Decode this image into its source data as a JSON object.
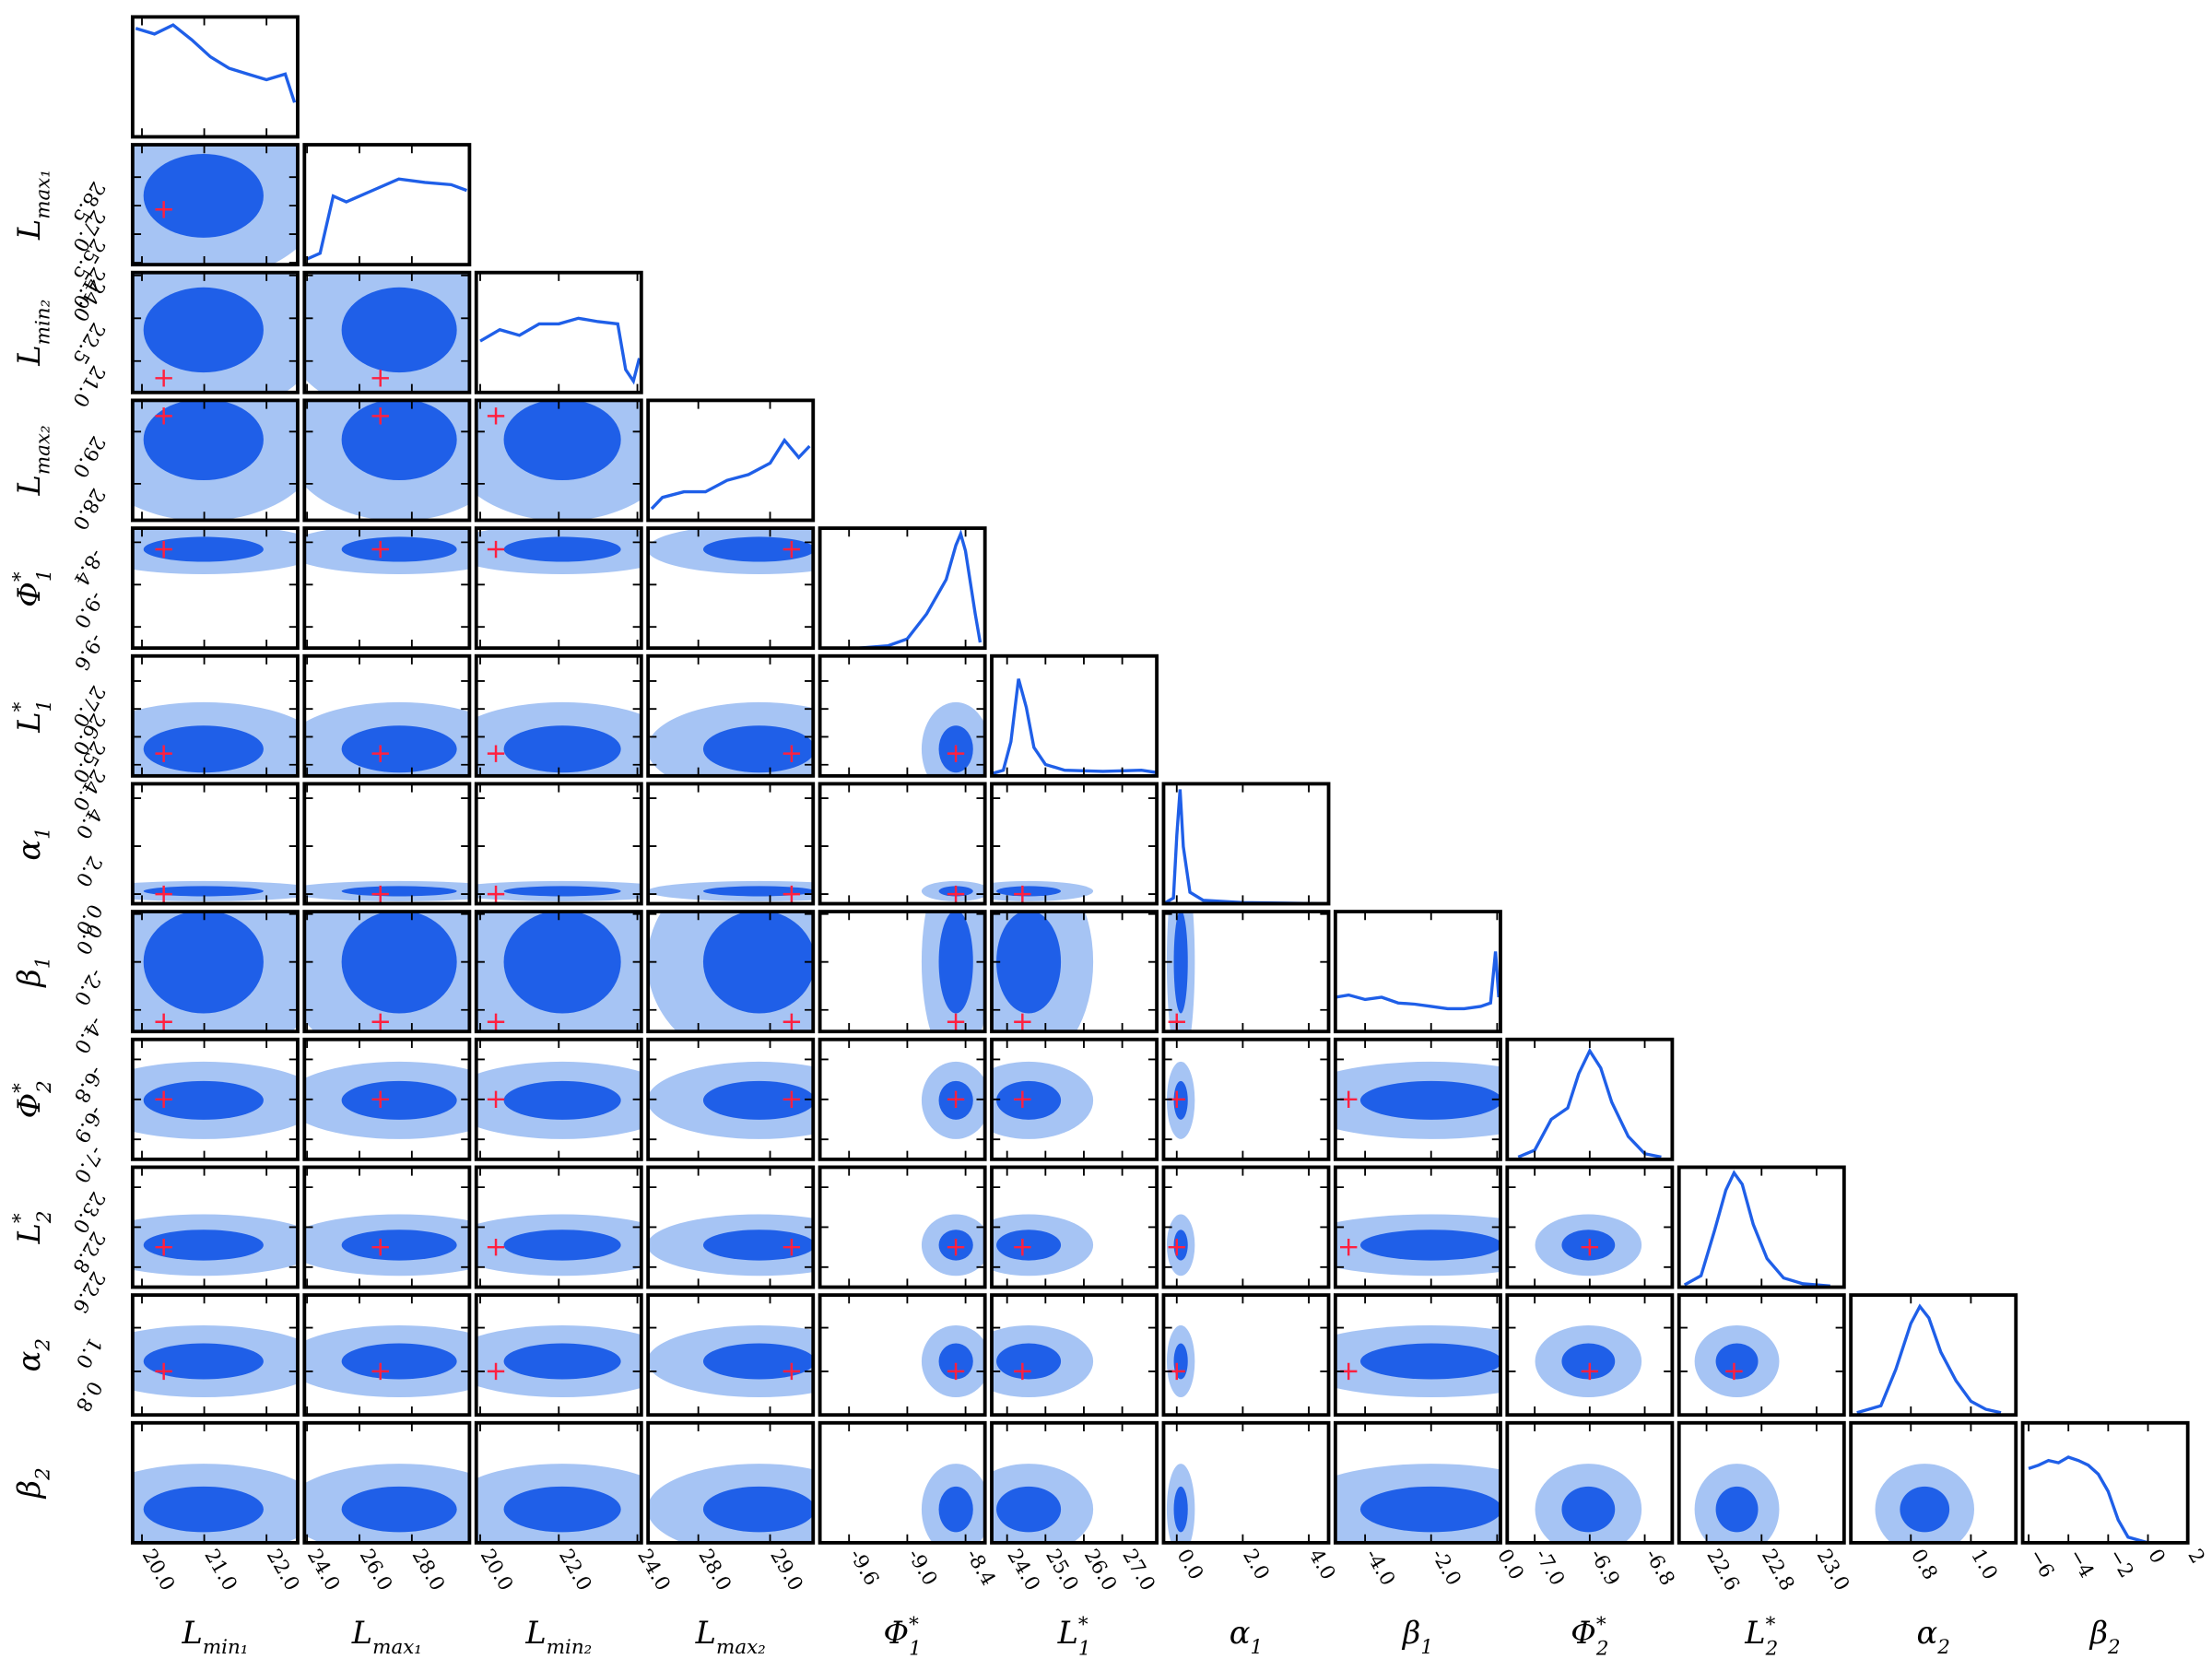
{
  "chart_data": {
    "type": "corner",
    "marginal_ylim": [
      0,
      1.05
    ],
    "colors": {
      "outer": "#a6c4f4",
      "inner": "#1f5fe8",
      "line": "#1f5fe8",
      "truth": "#ff2040"
    },
    "params": [
      {
        "label": {
          "symbol": "L",
          "sub": "min₁"
        },
        "lim": [
          19.85,
          22.5
        ],
        "xticks": [
          {
            "value": 20,
            "label": "20.0"
          },
          {
            "value": 21,
            "label": "21.0"
          },
          {
            "value": 22,
            "label": "22.0"
          }
        ],
        "yticks": [],
        "truth": 20.35,
        "marginal": {
          "x": [
            19.9,
            20.2,
            20.5,
            20.8,
            21.1,
            21.4,
            21.7,
            22.0,
            22.3,
            22.45
          ],
          "density": [
            0.95,
            0.9,
            0.98,
            0.85,
            0.7,
            0.6,
            0.55,
            0.5,
            0.55,
            0.3
          ]
        }
      },
      {
        "label": {
          "symbol": "L",
          "sub": "max₁"
        },
        "lim": [
          23.9,
          30.2
        ],
        "xticks": [
          {
            "value": 24,
            "label": "24.0"
          },
          {
            "value": 26,
            "label": "26.0"
          },
          {
            "value": 28,
            "label": "28.0"
          }
        ],
        "yticks": [
          {
            "value": 24,
            "label": "24.0"
          },
          25.5,
          {
            "value": 27,
            "label": "27.0"
          },
          28.5
        ],
        "truth": 26.8,
        "marginal": {
          "x": [
            24,
            24.5,
            25,
            25.5,
            26.5,
            27.5,
            28.5,
            29.5,
            30.1
          ],
          "density": [
            0.05,
            0.1,
            0.6,
            0.55,
            0.65,
            0.75,
            0.72,
            0.7,
            0.65
          ]
        }
      },
      {
        "label": {
          "symbol": "L",
          "sub": "min₂"
        },
        "lim": [
          19.9,
          24.1
        ],
        "xticks": [
          {
            "value": 20,
            "label": "20.0"
          },
          {
            "value": 22,
            "label": "22.0"
          },
          {
            "value": 24,
            "label": "24.0"
          }
        ],
        "yticks": [
          {
            "value": 21,
            "label": "21.0"
          },
          22.5,
          {
            "value": 24,
            "label": "24.0"
          }
        ],
        "truth": 20.4,
        "marginal": {
          "x": [
            20,
            20.5,
            21,
            21.5,
            22,
            22.5,
            23,
            23.5,
            23.7,
            23.9,
            24.05
          ],
          "density": [
            0.45,
            0.55,
            0.5,
            0.6,
            0.6,
            0.65,
            0.62,
            0.6,
            0.2,
            0.1,
            0.3
          ]
        }
      },
      {
        "label": {
          "symbol": "L",
          "sub": "max₂"
        },
        "lim": [
          27.3,
          29.6
        ],
        "xticks": [
          {
            "value": 28,
            "label": "28.0"
          },
          {
            "value": 29,
            "label": "29.0"
          }
        ],
        "yticks": [
          {
            "value": 28,
            "label": "28.0"
          },
          {
            "value": 29,
            "label": "29.0"
          }
        ],
        "truth": 29.3,
        "marginal": {
          "x": [
            27.35,
            27.5,
            27.8,
            28.1,
            28.4,
            28.7,
            29.0,
            29.2,
            29.4,
            29.55
          ],
          "density": [
            0.1,
            0.2,
            0.25,
            0.25,
            0.35,
            0.4,
            0.5,
            0.7,
            0.55,
            0.65
          ]
        }
      },
      {
        "label": {
          "symbol": "Φ",
          "sub": "1",
          "sup": "*"
        },
        "lim": [
          -9.9,
          -8.2
        ],
        "xticks": [
          -9.6,
          {
            "value": -9,
            "label": "-9.0"
          },
          -8.4
        ],
        "yticks": [
          -9.6,
          {
            "value": -9,
            "label": "-9.0"
          },
          -8.4
        ],
        "truth": -8.5,
        "marginal": {
          "x": [
            -9.9,
            -9.5,
            -9.2,
            -9.0,
            -8.8,
            -8.6,
            -8.5,
            -8.45,
            -8.4,
            -8.3,
            -8.25
          ],
          "density": [
            0,
            0,
            0.02,
            0.08,
            0.3,
            0.6,
            0.9,
            1.0,
            0.85,
            0.3,
            0.05
          ]
        }
      },
      {
        "label": {
          "symbol": "L",
          "sub": "1",
          "sup": "*"
        },
        "lim": [
          23.6,
          27.9
        ],
        "xticks": [
          {
            "value": 24,
            "label": "24.0"
          },
          {
            "value": 25,
            "label": "25.0"
          },
          {
            "value": 26,
            "label": "26.0"
          },
          {
            "value": 27,
            "label": "27.0"
          }
        ],
        "yticks": [
          {
            "value": 24,
            "label": "24.0"
          },
          {
            "value": 25,
            "label": "25.0"
          },
          {
            "value": 26,
            "label": "26.0"
          },
          {
            "value": 27,
            "label": "27.0"
          }
        ],
        "truth": 24.4,
        "marginal": {
          "x": [
            23.6,
            23.9,
            24.1,
            24.3,
            24.5,
            24.7,
            25.0,
            25.5,
            26.5,
            27.5,
            27.9
          ],
          "density": [
            0.02,
            0.05,
            0.3,
            0.85,
            0.6,
            0.25,
            0.1,
            0.05,
            0.04,
            0.05,
            0.03
          ]
        }
      },
      {
        "label": {
          "symbol": "α",
          "sub": "1"
        },
        "lim": [
          -0.4,
          4.6
        ],
        "xticks": [
          {
            "value": 0,
            "label": "0.0"
          },
          {
            "value": 2,
            "label": "2.0"
          },
          {
            "value": 4,
            "label": "4.0"
          }
        ],
        "yticks": [
          {
            "value": 0,
            "label": "0.0"
          },
          {
            "value": 2,
            "label": "2.0"
          },
          {
            "value": 4,
            "label": "4.0"
          }
        ],
        "truth": 0,
        "marginal": {
          "x": [
            -0.4,
            -0.1,
            0,
            0.1,
            0.2,
            0.4,
            0.8,
            2,
            4.6
          ],
          "density": [
            0,
            0.05,
            0.6,
            1.0,
            0.5,
            0.1,
            0.03,
            0.01,
            0
          ]
        }
      },
      {
        "label": {
          "symbol": "β",
          "sub": "1"
        },
        "lim": [
          -4.9,
          0.1
        ],
        "xticks": [
          {
            "value": -4,
            "label": "-4.0"
          },
          {
            "value": -2,
            "label": "-2.0"
          },
          {
            "value": 0,
            "label": "0.0"
          }
        ],
        "yticks": [
          {
            "value": -4,
            "label": "-4.0"
          },
          {
            "value": -2,
            "label": "-2.0"
          },
          {
            "value": 0,
            "label": "0.0"
          }
        ],
        "truth": -4.5,
        "marginal": {
          "x": [
            -4.9,
            -4.5,
            -4,
            -3.5,
            -3,
            -2.5,
            -2,
            -1.5,
            -1,
            -0.5,
            -0.2,
            -0.05,
            0.05
          ],
          "density": [
            0.3,
            0.32,
            0.28,
            0.3,
            0.25,
            0.24,
            0.22,
            0.2,
            0.2,
            0.22,
            0.25,
            0.7,
            0.3
          ]
        }
      },
      {
        "label": {
          "symbol": "Φ",
          "sub": "2",
          "sup": "*"
        },
        "lim": [
          -7.05,
          -6.75
        ],
        "xticks": [
          {
            "value": -7,
            "label": "-7.0"
          },
          -6.9,
          -6.8
        ],
        "yticks": [
          {
            "value": -7,
            "label": "-7.0"
          },
          -6.9,
          -6.8
        ],
        "truth": -6.9,
        "marginal": {
          "x": [
            -7.03,
            -7.0,
            -6.97,
            -6.94,
            -6.92,
            -6.9,
            -6.88,
            -6.86,
            -6.83,
            -6.8,
            -6.77
          ],
          "density": [
            0.02,
            0.08,
            0.35,
            0.45,
            0.75,
            0.95,
            0.8,
            0.5,
            0.2,
            0.05,
            0.02
          ]
        }
      },
      {
        "label": {
          "symbol": "L",
          "sub": "2",
          "sup": "*"
        },
        "lim": [
          22.5,
          23.1
        ],
        "xticks": [
          22.6,
          22.8,
          {
            "value": 23,
            "label": "23.0"
          }
        ],
        "yticks": [
          22.6,
          22.8,
          {
            "value": 23,
            "label": "23.0"
          }
        ],
        "truth": 22.7,
        "marginal": {
          "x": [
            22.52,
            22.58,
            22.63,
            22.67,
            22.7,
            22.73,
            22.77,
            22.82,
            22.88,
            22.95,
            23.05
          ],
          "density": [
            0.02,
            0.1,
            0.5,
            0.85,
            1.0,
            0.9,
            0.55,
            0.25,
            0.08,
            0.03,
            0.01
          ]
        }
      },
      {
        "label": {
          "symbol": "α",
          "sub": "2"
        },
        "lim": [
          0.6,
          1.15
        ],
        "xticks": [
          0.8,
          {
            "value": 1,
            "label": "1.0"
          }
        ],
        "yticks": [
          0.8,
          {
            "value": 1,
            "label": "1.0"
          }
        ],
        "truth": 0.8,
        "marginal": {
          "x": [
            0.62,
            0.7,
            0.75,
            0.8,
            0.83,
            0.86,
            0.9,
            0.95,
            1.0,
            1.05,
            1.1
          ],
          "density": [
            0.02,
            0.08,
            0.4,
            0.8,
            0.95,
            0.85,
            0.55,
            0.3,
            0.12,
            0.05,
            0.02
          ]
        }
      },
      {
        "label": {
          "symbol": "β",
          "sub": "2"
        },
        "lim": [
          -6.3,
          2
        ],
        "xticks": [
          {
            "value": -6,
            "label": "−6"
          },
          {
            "value": -4,
            "label": "−4"
          },
          {
            "value": -2,
            "label": "−2"
          },
          0,
          2
        ],
        "yticks": [],
        "truth": null,
        "marginal": {
          "x": [
            -6.0,
            -5.5,
            -5,
            -4.5,
            -4,
            -3.5,
            -3,
            -2.5,
            -2,
            -1.5,
            -1,
            0,
            1.5
          ],
          "density": [
            0.65,
            0.68,
            0.72,
            0.7,
            0.75,
            0.72,
            0.68,
            0.6,
            0.45,
            0.2,
            0.05,
            0,
            0
          ]
        }
      }
    ]
  }
}
